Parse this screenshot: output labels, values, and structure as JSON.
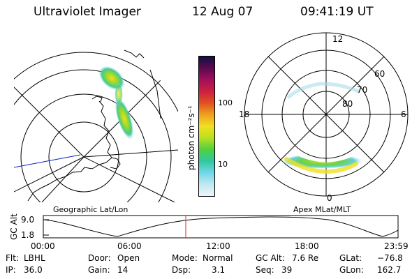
{
  "header": {
    "instrument": "Ultraviolet Imager",
    "date": "12 Aug 07",
    "time": "09:41:19 UT"
  },
  "colorbar": {
    "unit_label": "photon cm⁻²s⁻¹",
    "tick_100": "100",
    "tick_10": "10",
    "scale": "log",
    "colors": [
      "#101040",
      "#5a0a50",
      "#a0105a",
      "#cc2040",
      "#e05020",
      "#f0a020",
      "#f0e020",
      "#b8e020",
      "#50d040",
      "#30c8a0",
      "#70d8e8",
      "#c0e8f0",
      "#f0f4f8"
    ]
  },
  "map": {
    "title": "Geographic Lat/Lon"
  },
  "polar": {
    "title": "Apex MLat/MLT",
    "mlt_12": "12",
    "mlt_18": "18",
    "mlt_6": "6",
    "mlt_0": "0",
    "lat_60": "60",
    "lat_70": "70",
    "lat_80": "80"
  },
  "altitude_plot": {
    "axis_label": "GC Alt",
    "tick_top": "9.0",
    "tick_bottom": "1.8",
    "x_ticks": [
      "00:00",
      "06:00",
      "12:00",
      "18:00",
      "23:59"
    ],
    "current_time_color": "#e02020"
  },
  "status": {
    "filter_label": "Flt:",
    "filter_value": "LBHL",
    "door_label": "Door:",
    "door_value": "Open",
    "mode_label": "Mode:",
    "mode_value": "Normal",
    "gcalt_label": "GC Alt:",
    "gcalt_value": "7.6 Re",
    "glat_label": "GLat:",
    "glat_value": "−76.8",
    "ip_label": "IP:",
    "ip_value": "36.0",
    "gain_label": "Gain:",
    "gain_value": "14",
    "dsp_label": "Dsp:",
    "dsp_value": "3.1",
    "seq_label": "Seq:",
    "seq_value": "39",
    "glon_label": "GLon:",
    "glon_value": "162.7"
  }
}
